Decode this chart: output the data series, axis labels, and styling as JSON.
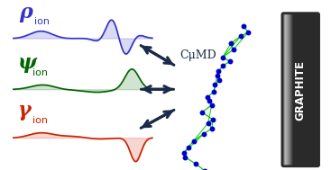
{
  "bg_color": "#ffffff",
  "blue_color": "#3333cc",
  "green_color": "#006600",
  "red_color": "#cc2200",
  "arrow_color": "#1a2a4a",
  "graphite_color": "#2a2a2a",
  "mol_green": "#00cc00",
  "mol_blue": "#0000cc",
  "cumd_text": "CμMD",
  "graphite_text": "GRAPHITE",
  "rho_label": "ρ",
  "psi_label": "ψ",
  "gamma_label": "γ"
}
